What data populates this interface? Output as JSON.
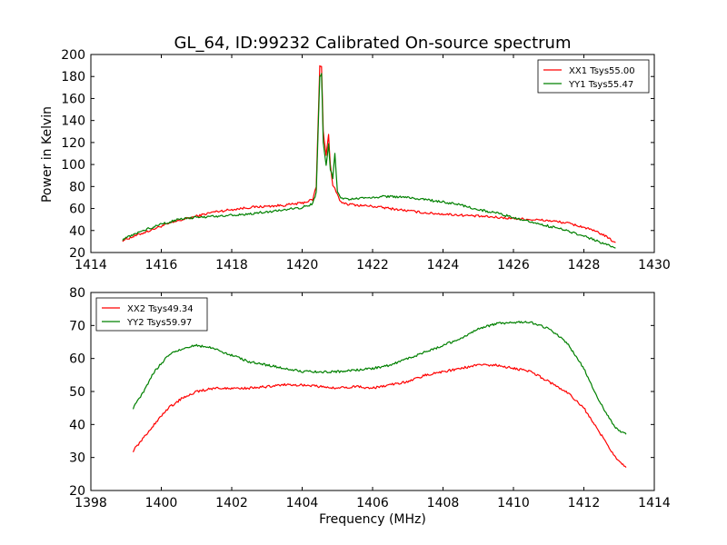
{
  "title": "GL_64, ID:99232 Calibrated On-source spectrum",
  "ylabel": "Power in Kelvin",
  "xlabel": "Frequency (MHz)",
  "colors": {
    "xx": "#ff0000",
    "yy": "#008000"
  },
  "chart_data": [
    {
      "type": "line",
      "xlim": [
        1414,
        1430
      ],
      "ylim": [
        20,
        200
      ],
      "xticks": [
        "1414",
        "1416",
        "1418",
        "1420",
        "1422",
        "1424",
        "1426",
        "1428",
        "1430"
      ],
      "yticks": [
        "20",
        "40",
        "60",
        "80",
        "100",
        "120",
        "140",
        "160",
        "180",
        "200"
      ],
      "legend_position": "top-right",
      "grid": false,
      "series": [
        {
          "name": "XX1 Tsys55.00",
          "color": "#ff0000",
          "x": [
            1414.9,
            1415.5,
            1416.0,
            1416.5,
            1417.0,
            1417.5,
            1418.0,
            1418.5,
            1419.0,
            1419.5,
            1420.0,
            1420.3,
            1420.4,
            1420.5,
            1420.55,
            1420.6,
            1420.68,
            1420.75,
            1420.8,
            1420.87,
            1420.93,
            1421.0,
            1421.1,
            1421.3,
            1421.6,
            1422.0,
            1422.5,
            1423.0,
            1423.5,
            1424.0,
            1424.5,
            1425.0,
            1425.5,
            1426.0,
            1426.5,
            1427.0,
            1427.5,
            1428.0,
            1428.5,
            1428.9
          ],
          "y": [
            31,
            38,
            44,
            49,
            53,
            57,
            59,
            61,
            62,
            63,
            65,
            68,
            80,
            189,
            190,
            130,
            108,
            127,
            100,
            80,
            78,
            72,
            66,
            64,
            63,
            62,
            60,
            58,
            56,
            55,
            54,
            53,
            52,
            51,
            50,
            49,
            47,
            43,
            37,
            29
          ]
        },
        {
          "name": "YY1 Tsys55.47",
          "color": "#008000",
          "x": [
            1414.9,
            1415.5,
            1416.0,
            1416.5,
            1417.0,
            1417.5,
            1418.0,
            1418.5,
            1419.0,
            1419.5,
            1420.0,
            1420.3,
            1420.4,
            1420.5,
            1420.55,
            1420.6,
            1420.68,
            1420.75,
            1420.8,
            1420.87,
            1420.93,
            1421.0,
            1421.1,
            1421.3,
            1421.6,
            1422.0,
            1422.5,
            1423.0,
            1423.5,
            1424.0,
            1424.5,
            1425.0,
            1425.5,
            1426.0,
            1426.5,
            1427.0,
            1427.5,
            1428.0,
            1428.5,
            1428.9
          ],
          "y": [
            32,
            40,
            46,
            50,
            52,
            53,
            54,
            55,
            57,
            59,
            61,
            64,
            75,
            180,
            182,
            120,
            100,
            118,
            95,
            88,
            110,
            76,
            69,
            68,
            69,
            70,
            71,
            70,
            68,
            66,
            63,
            59,
            56,
            52,
            48,
            44,
            40,
            35,
            29,
            24
          ]
        }
      ]
    },
    {
      "type": "line",
      "xlim": [
        1398,
        1414
      ],
      "ylim": [
        20,
        80
      ],
      "xticks": [
        "1398",
        "1400",
        "1402",
        "1404",
        "1406",
        "1408",
        "1410",
        "1412",
        "1414"
      ],
      "yticks": [
        "20",
        "30",
        "40",
        "50",
        "60",
        "70",
        "80"
      ],
      "legend_position": "top-left",
      "grid": false,
      "series": [
        {
          "name": "XX2 Tsys49.34",
          "color": "#ff0000",
          "x": [
            1399.2,
            1399.5,
            1399.8,
            1400.2,
            1400.6,
            1401.0,
            1401.5,
            1402.0,
            1402.5,
            1403.0,
            1403.5,
            1404.0,
            1404.5,
            1405.0,
            1405.5,
            1406.0,
            1406.5,
            1407.0,
            1407.5,
            1408.0,
            1408.5,
            1409.0,
            1409.5,
            1410.0,
            1410.5,
            1411.0,
            1411.5,
            1412.0,
            1412.3,
            1412.6,
            1412.9,
            1413.2
          ],
          "y": [
            32,
            36,
            40,
            45,
            48,
            50,
            51,
            51,
            51,
            51.5,
            52,
            52,
            51.5,
            51,
            51.5,
            51,
            52,
            53,
            55,
            56,
            57,
            58,
            58,
            57,
            56,
            53,
            50,
            45,
            40,
            35,
            30,
            27
          ]
        },
        {
          "name": "YY2 Tsys59.97",
          "color": "#008000",
          "x": [
            1399.2,
            1399.5,
            1399.8,
            1400.2,
            1400.6,
            1401.0,
            1401.5,
            1402.0,
            1402.5,
            1403.0,
            1403.5,
            1404.0,
            1404.5,
            1405.0,
            1405.5,
            1406.0,
            1406.5,
            1407.0,
            1407.5,
            1408.0,
            1408.5,
            1409.0,
            1409.5,
            1410.0,
            1410.5,
            1411.0,
            1411.5,
            1412.0,
            1412.3,
            1412.6,
            1412.9,
            1413.2
          ],
          "y": [
            45,
            50,
            56,
            61,
            63,
            64,
            63,
            61,
            59,
            58,
            57,
            56,
            56,
            56,
            56.5,
            57,
            58,
            60,
            62,
            64,
            66,
            69,
            70.5,
            71,
            71,
            69,
            65,
            57,
            50,
            44,
            39,
            37
          ]
        }
      ]
    }
  ]
}
